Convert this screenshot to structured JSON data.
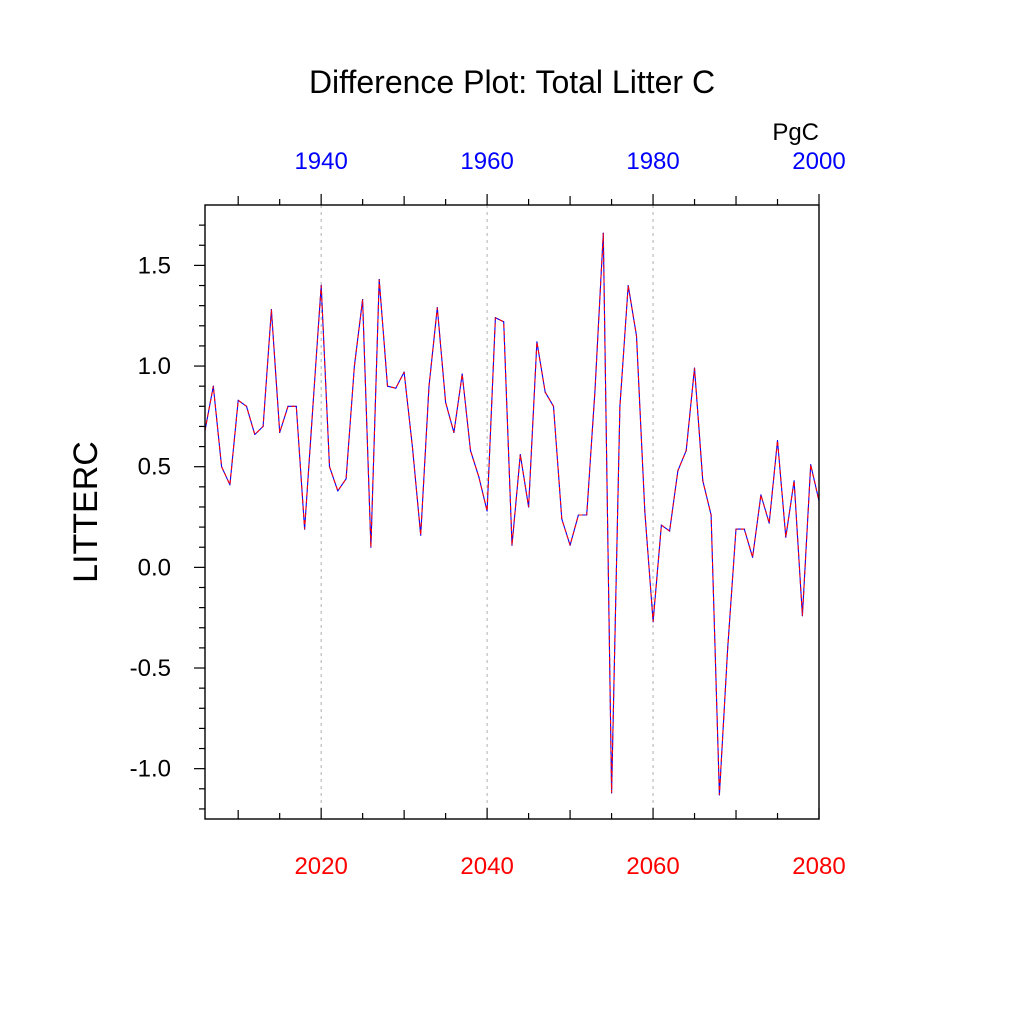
{
  "chart_data": {
    "type": "line",
    "title": "Difference Plot: Total Litter C",
    "units_label": "PgC",
    "ylabel": "LITTERC",
    "xlabel": "",
    "ylim": [
      -1.25,
      1.8
    ],
    "yticks": [
      -1.0,
      -0.5,
      0.0,
      0.5,
      1.0,
      1.5
    ],
    "yticks_labels": [
      "-1.0",
      "-0.5",
      "0.0",
      "0.5",
      "1.0",
      "1.5"
    ],
    "bottom_axis": {
      "color": "#ff0000",
      "xlim": [
        2006,
        2080
      ],
      "major_ticks": [
        2020,
        2040,
        2060,
        2080
      ],
      "labels": [
        "2020",
        "2040",
        "2060",
        "2080"
      ]
    },
    "top_axis": {
      "color": "#0000ff",
      "offset_years": -80,
      "major_ticks": [
        1940,
        1960,
        1980,
        2000
      ],
      "labels": [
        "1940",
        "1960",
        "1980",
        "2000"
      ]
    },
    "grid_lines_x": [
      2020,
      2040,
      2060
    ],
    "series": [
      {
        "name": "LITTERC difference",
        "line_color": "#0000ff",
        "dash_color": "#ff0000",
        "x": [
          2006,
          2007,
          2008,
          2009,
          2010,
          2011,
          2012,
          2013,
          2014,
          2015,
          2016,
          2017,
          2018,
          2019,
          2020,
          2021,
          2022,
          2023,
          2024,
          2025,
          2026,
          2027,
          2028,
          2029,
          2030,
          2031,
          2032,
          2033,
          2034,
          2035,
          2036,
          2037,
          2038,
          2039,
          2040,
          2041,
          2042,
          2043,
          2044,
          2045,
          2046,
          2047,
          2048,
          2049,
          2050,
          2051,
          2052,
          2053,
          2054,
          2055,
          2056,
          2057,
          2058,
          2059,
          2060,
          2061,
          2062,
          2063,
          2064,
          2065,
          2066,
          2067,
          2068,
          2069,
          2070,
          2071,
          2072,
          2073,
          2074,
          2075,
          2076,
          2077,
          2078,
          2079,
          2080
        ],
        "values": [
          0.68,
          0.9,
          0.5,
          0.41,
          0.83,
          0.8,
          0.66,
          0.7,
          1.28,
          0.67,
          0.8,
          0.8,
          0.19,
          0.8,
          1.4,
          0.5,
          0.38,
          0.44,
          1.0,
          1.33,
          0.1,
          1.43,
          0.9,
          0.89,
          0.97,
          0.6,
          0.16,
          0.9,
          1.29,
          0.82,
          0.67,
          0.96,
          0.58,
          0.45,
          0.28,
          1.24,
          1.22,
          0.11,
          0.56,
          0.3,
          1.12,
          0.87,
          0.8,
          0.24,
          0.11,
          0.26,
          0.26,
          0.88,
          1.66,
          -1.12,
          0.8,
          1.4,
          1.15,
          0.28,
          -0.27,
          0.21,
          0.18,
          0.48,
          0.58,
          0.99,
          0.43,
          0.26,
          -1.13,
          -0.4,
          0.19,
          0.19,
          0.05,
          0.36,
          0.22,
          0.63,
          0.15,
          0.43,
          -0.24,
          0.51,
          0.33
        ]
      }
    ]
  }
}
